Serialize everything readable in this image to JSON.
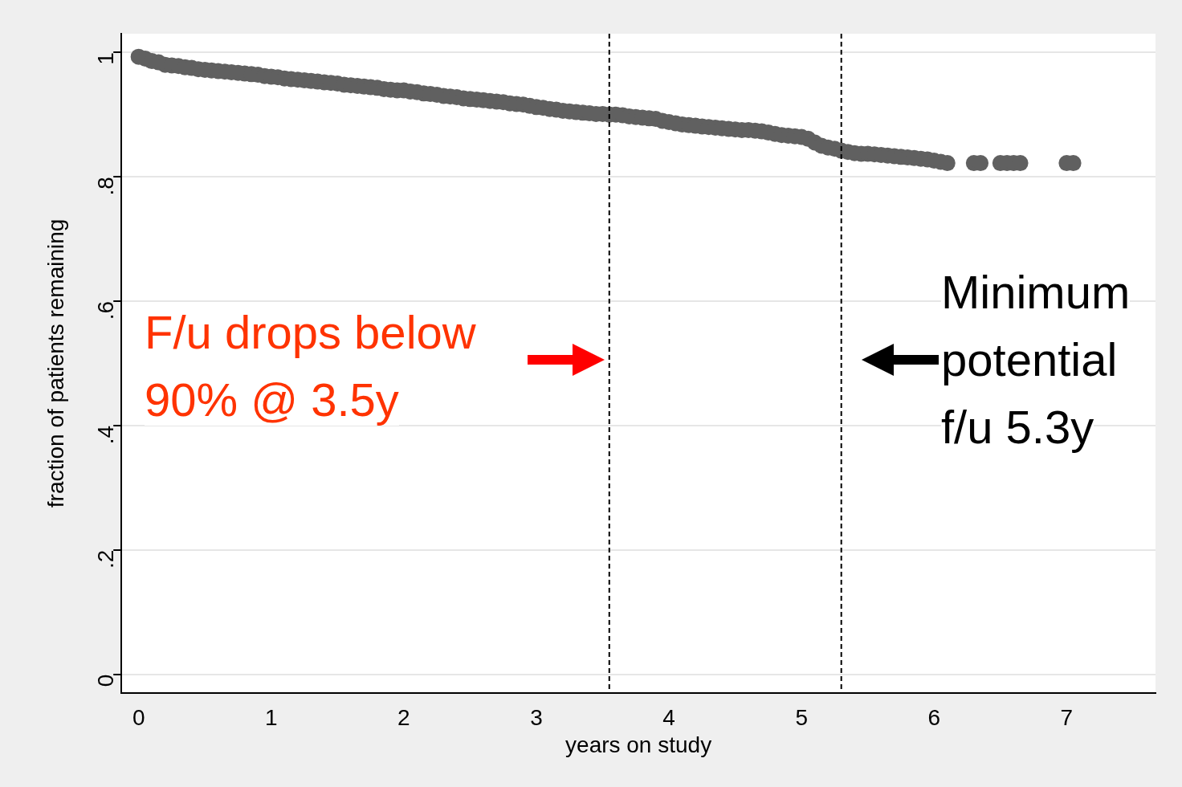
{
  "chart_data": {
    "type": "scatter",
    "xlabel": "years on study",
    "ylabel": "fraction of patients remaining",
    "series": [
      {
        "color": "#606060",
        "x": [
          0,
          0.05,
          0.1,
          0.15,
          0.2,
          0.25,
          0.3,
          0.35,
          0.4,
          0.45,
          0.5,
          0.55,
          0.6,
          0.65,
          0.7,
          0.75,
          0.8,
          0.85,
          0.9,
          0.95,
          1,
          1.05,
          1.1,
          1.15,
          1.2,
          1.25,
          1.3,
          1.35,
          1.4,
          1.45,
          1.5,
          1.55,
          1.6,
          1.65,
          1.7,
          1.75,
          1.8,
          1.85,
          1.9,
          1.95,
          2,
          2.05,
          2.1,
          2.15,
          2.2,
          2.25,
          2.3,
          2.35,
          2.4,
          2.45,
          2.5,
          2.55,
          2.6,
          2.65,
          2.7,
          2.75,
          2.8,
          2.85,
          2.9,
          2.95,
          3,
          3.05,
          3.1,
          3.15,
          3.2,
          3.25,
          3.3,
          3.35,
          3.4,
          3.45,
          3.5,
          3.55,
          3.6,
          3.65,
          3.7,
          3.75,
          3.8,
          3.85,
          3.9,
          3.95,
          4,
          4.05,
          4.1,
          4.15,
          4.2,
          4.25,
          4.3,
          4.35,
          4.4,
          4.45,
          4.5,
          4.55,
          4.6,
          4.65,
          4.7,
          4.75,
          4.8,
          4.85,
          4.9,
          4.95,
          5,
          5.05,
          5.1,
          5.15,
          5.2,
          5.25,
          5.3,
          5.35,
          5.4,
          5.45,
          5.5,
          5.55,
          5.6,
          5.65,
          5.7,
          5.75,
          5.8,
          5.85,
          5.9,
          5.95,
          6,
          6.05,
          6.1,
          6.3,
          6.35,
          6.5,
          6.55,
          6.6,
          6.65,
          7,
          7.05
        ],
        "values": [
          0.993,
          0.99,
          0.986,
          0.984,
          0.98,
          0.979,
          0.978,
          0.976,
          0.975,
          0.973,
          0.972,
          0.971,
          0.97,
          0.969,
          0.968,
          0.967,
          0.966,
          0.965,
          0.964,
          0.962,
          0.961,
          0.96,
          0.958,
          0.957,
          0.956,
          0.955,
          0.954,
          0.953,
          0.952,
          0.951,
          0.95,
          0.948,
          0.947,
          0.946,
          0.945,
          0.944,
          0.943,
          0.941,
          0.94,
          0.939,
          0.939,
          0.937,
          0.936,
          0.934,
          0.933,
          0.932,
          0.93,
          0.929,
          0.928,
          0.926,
          0.925,
          0.924,
          0.923,
          0.922,
          0.921,
          0.92,
          0.918,
          0.917,
          0.916,
          0.914,
          0.912,
          0.911,
          0.909,
          0.908,
          0.906,
          0.905,
          0.904,
          0.903,
          0.902,
          0.901,
          0.901,
          0.9,
          0.9,
          0.899,
          0.897,
          0.896,
          0.895,
          0.894,
          0.893,
          0.89,
          0.888,
          0.886,
          0.884,
          0.883,
          0.882,
          0.881,
          0.88,
          0.879,
          0.878,
          0.877,
          0.876,
          0.875,
          0.875,
          0.874,
          0.873,
          0.871,
          0.869,
          0.867,
          0.866,
          0.865,
          0.864,
          0.861,
          0.855,
          0.85,
          0.847,
          0.845,
          0.842,
          0.84,
          0.838,
          0.837,
          0.837,
          0.836,
          0.835,
          0.834,
          0.833,
          0.832,
          0.831,
          0.83,
          0.829,
          0.828,
          0.826,
          0.824,
          0.822,
          0.822,
          0.822,
          0.822,
          0.822,
          0.822,
          0.822,
          0.822,
          0.822
        ]
      }
    ],
    "marker": "circle",
    "xlim": [
      -0.13,
      7.67
    ],
    "xticks": [
      0,
      1,
      2,
      3,
      4,
      5,
      6,
      7
    ],
    "ylim": [
      -0.03,
      1.03
    ],
    "yticks": [
      0,
      {
        "value": 0.2,
        "label": ".2"
      },
      {
        "value": 0.4,
        "label": ".4"
      },
      {
        "value": 0.6,
        "label": ".6"
      },
      {
        "value": 0.8,
        "label": ".8"
      },
      1
    ],
    "grid": "y",
    "legend": false,
    "ref_lines": [
      {
        "axis": "x",
        "value": 3.55,
        "color": "#000000",
        "line_style": "dashed"
      },
      {
        "axis": "x",
        "value": 5.3,
        "color": "#000000",
        "line_style": "dashed"
      }
    ],
    "annotations": [
      "F/u drops below 90% @ 3.5y",
      "Minimum potential f/u 5.3y"
    ]
  }
}
